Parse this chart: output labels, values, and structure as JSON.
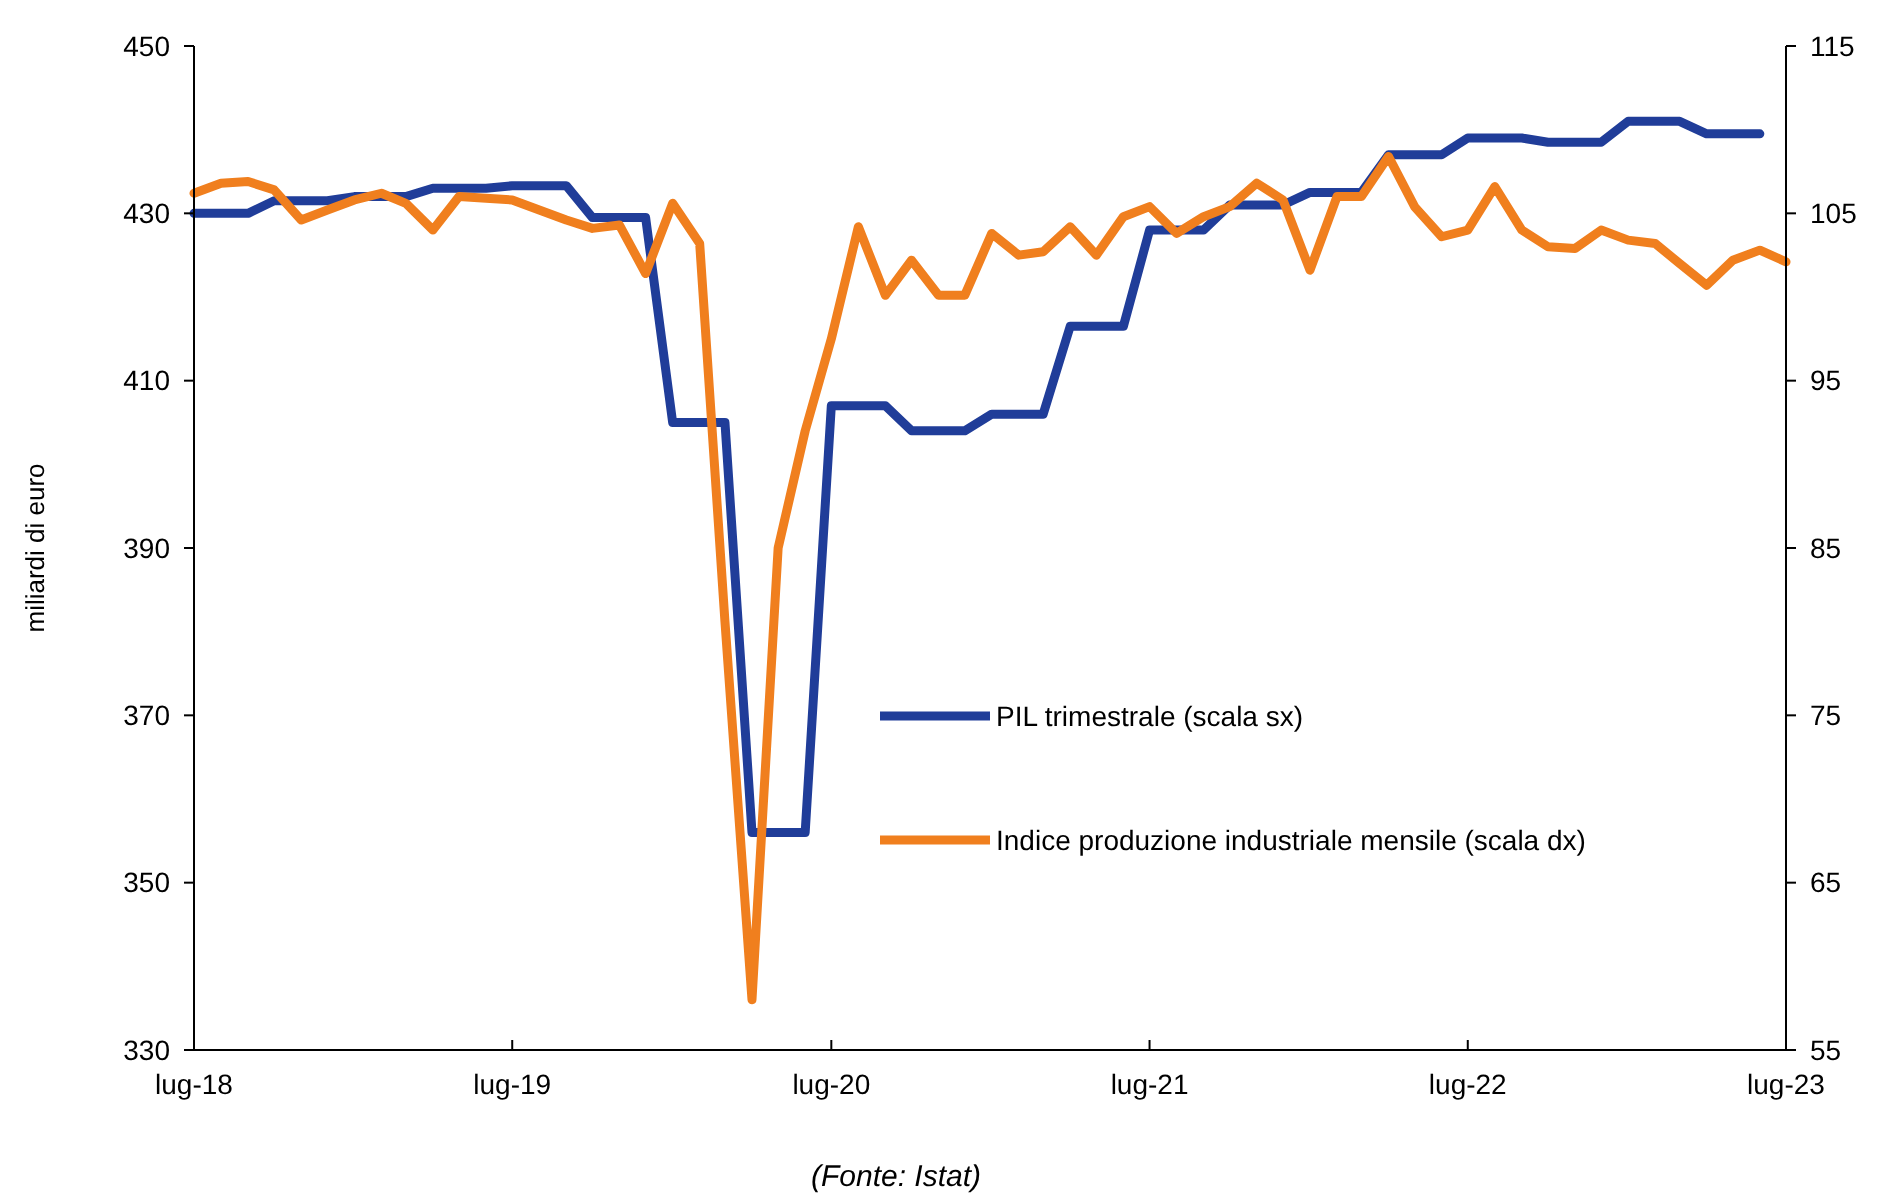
{
  "chart_data": {
    "type": "line",
    "ylabel": "miliardi di euro",
    "annotations": [
      "(Fonte: Istat)"
    ],
    "xlim": [
      "2018-07",
      "2023-07"
    ],
    "xticks": [
      {
        "value": "2018-07",
        "label": "lug-18"
      },
      {
        "value": "2019-07",
        "label": "lug-19"
      },
      {
        "value": "2020-07",
        "label": "lug-20"
      },
      {
        "value": "2021-07",
        "label": "lug-21"
      },
      {
        "value": "2022-07",
        "label": "lug-22"
      },
      {
        "value": "2023-07",
        "label": "lug-23"
      }
    ],
    "ylim": [
      330,
      450
    ],
    "yticks": [
      330,
      350,
      370,
      390,
      410,
      430,
      450
    ],
    "y2lim": [
      55,
      115
    ],
    "y2ticks": [
      55,
      65,
      75,
      85,
      95,
      105,
      115
    ],
    "grid": false,
    "legend": "right",
    "line_style": "solid",
    "marker": "none",
    "series": [
      {
        "name": "PIL trimestrale (scala sx)",
        "color": "#203d99",
        "axis": "y",
        "x": [
          "2018-07",
          "2018-08",
          "2018-09",
          "2018-10",
          "2018-11",
          "2018-12",
          "2019-01",
          "2019-02",
          "2019-03",
          "2019-04",
          "2019-05",
          "2019-06",
          "2019-07",
          "2019-08",
          "2019-09",
          "2019-10",
          "2019-11",
          "2019-12",
          "2020-01",
          "2020-02",
          "2020-03",
          "2020-04",
          "2020-05",
          "2020-06",
          "2020-07",
          "2020-08",
          "2020-09",
          "2020-10",
          "2020-11",
          "2020-12",
          "2021-01",
          "2021-02",
          "2021-03",
          "2021-04",
          "2021-05",
          "2021-06",
          "2021-07",
          "2021-08",
          "2021-09",
          "2021-10",
          "2021-11",
          "2021-12",
          "2022-01",
          "2022-02",
          "2022-03",
          "2022-04",
          "2022-05",
          "2022-06",
          "2022-07",
          "2022-08",
          "2022-09",
          "2022-10",
          "2022-11",
          "2022-12",
          "2023-01",
          "2023-02",
          "2023-03",
          "2023-04",
          "2023-05",
          "2023-06"
        ],
        "values": [
          430,
          430,
          430,
          431.5,
          431.5,
          431.5,
          432,
          432,
          432,
          433,
          433,
          433,
          433.3,
          433.3,
          433.3,
          429.5,
          429.5,
          429.5,
          405,
          405,
          405,
          356,
          356,
          356,
          407,
          407,
          407,
          404,
          404,
          404,
          406,
          406,
          406,
          416.5,
          416.5,
          416.5,
          428,
          428,
          428,
          431,
          431,
          431,
          432.5,
          432.5,
          432.5,
          437,
          437,
          437,
          439,
          439,
          439,
          438.5,
          438.5,
          438.5,
          441,
          441,
          441,
          439.5,
          439.5,
          439.5
        ]
      },
      {
        "name": "Indice produzione industriale mensile (scala dx)",
        "color": "#f07f1e",
        "axis": "y2",
        "x": [
          "2018-07",
          "2018-08",
          "2018-09",
          "2018-10",
          "2018-11",
          "2018-12",
          "2019-01",
          "2019-02",
          "2019-03",
          "2019-04",
          "2019-05",
          "2019-06",
          "2019-07",
          "2019-08",
          "2019-09",
          "2019-10",
          "2019-11",
          "2019-12",
          "2020-01",
          "2020-02",
          "2020-03",
          "2020-04",
          "2020-05",
          "2020-06",
          "2020-07",
          "2020-08",
          "2020-09",
          "2020-10",
          "2020-11",
          "2020-12",
          "2021-01",
          "2021-02",
          "2021-03",
          "2021-04",
          "2021-05",
          "2021-06",
          "2021-07",
          "2021-08",
          "2021-09",
          "2021-10",
          "2021-11",
          "2021-12",
          "2022-01",
          "2022-02",
          "2022-03",
          "2022-04",
          "2022-05",
          "2022-06",
          "2022-07",
          "2022-08",
          "2022-09",
          "2022-10",
          "2022-11",
          "2022-12",
          "2023-01",
          "2023-02",
          "2023-03",
          "2023-04",
          "2023-05",
          "2023-06",
          "2023-07"
        ],
        "values": [
          106.2,
          106.8,
          106.9,
          106.4,
          104.6,
          105.2,
          105.8,
          106.2,
          105.6,
          104,
          106,
          105.9,
          105.8,
          105.2,
          104.6,
          104.1,
          104.3,
          101.4,
          105.6,
          103.2,
          80.6,
          58,
          85,
          92,
          97.5,
          104.2,
          100.1,
          102.2,
          100.1,
          100.1,
          103.8,
          102.5,
          102.7,
          104.2,
          102.5,
          104.8,
          105.4,
          103.8,
          104.8,
          105.4,
          106.8,
          105.8,
          101.6,
          106,
          106,
          108.4,
          105.4,
          103.6,
          104,
          106.6,
          104,
          103,
          102.9,
          104,
          103.4,
          103.2,
          102,
          100.7,
          102.2,
          102.8,
          102.1
        ]
      }
    ]
  }
}
